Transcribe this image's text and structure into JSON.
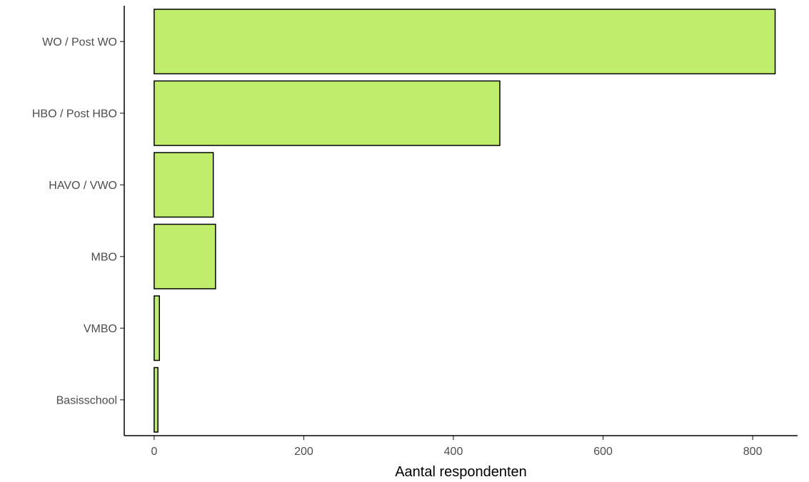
{
  "chart_data": {
    "type": "bar",
    "orientation": "horizontal",
    "categories": [
      "WO / Post WO",
      "HBO / Post HBO",
      "HAVO / VWO",
      "MBO",
      "VMBO",
      "Basisschool"
    ],
    "values": [
      830,
      462,
      79,
      82,
      7,
      5
    ],
    "xlabel": "Aantal respondenten",
    "ylabel": "",
    "title": "",
    "xlim": [
      -40,
      860
    ],
    "xticks": [
      0,
      200,
      400,
      600,
      800
    ],
    "grid": false,
    "legend": "none",
    "bar_color": "#c0ee6c",
    "bar_edge_color": "#000000"
  }
}
